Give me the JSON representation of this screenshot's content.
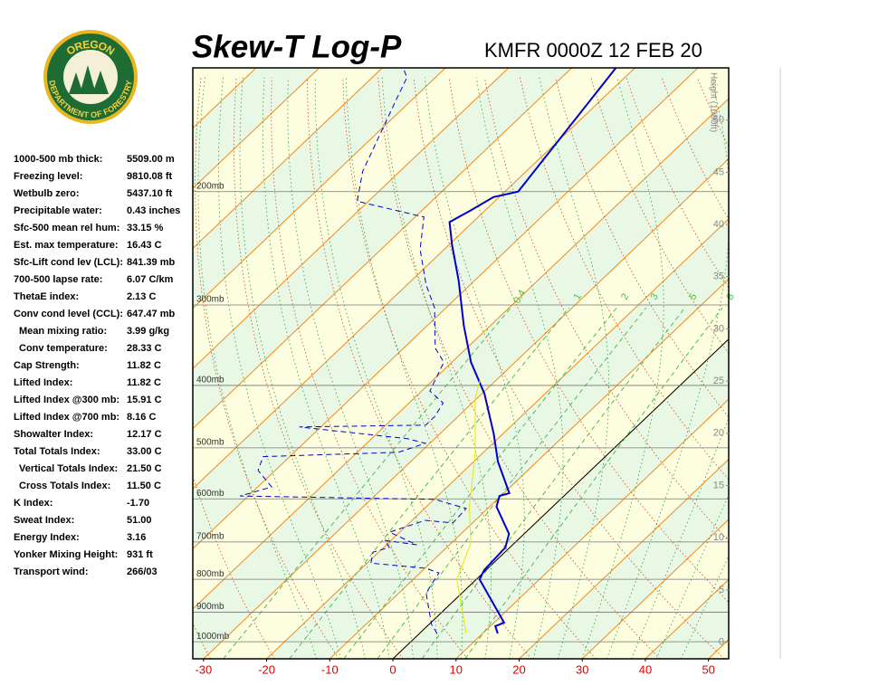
{
  "logo": {
    "top": "OREGON",
    "bottom": "DEPARTMENT OF FORESTRY"
  },
  "stats": [
    {
      "label": "1000-500 mb thick:",
      "value": "5509.00 m"
    },
    {
      "label": "Freezing level:",
      "value": "9810.08 ft"
    },
    {
      "label": "Wetbulb zero:",
      "value": "5437.10 ft"
    },
    {
      "label": "Precipitable water:",
      "value": "0.43 inches"
    },
    {
      "label": "Sfc-500 mean rel hum:",
      "value": "33.15 %"
    },
    {
      "label": "Est. max temperature:",
      "value": "16.43 C"
    },
    {
      "label": "Sfc-Lift cond lev (LCL):",
      "value": "841.39 mb"
    },
    {
      "label": "700-500 lapse rate:",
      "value": "6.07 C/km"
    },
    {
      "label": "ThetaE index:",
      "value": "2.13 C"
    },
    {
      "label": "Conv cond level (CCL):",
      "value": "647.47 mb"
    },
    {
      "label": "Mean mixing ratio:",
      "value": "3.99 g/kg"
    },
    {
      "label": "Conv temperature:",
      "value": "28.33 C"
    },
    {
      "label": "Cap Strength:",
      "value": "11.82 C"
    },
    {
      "label": "Lifted Index:",
      "value": "11.82 C"
    },
    {
      "label": "Lifted Index @300 mb:",
      "value": "15.91 C"
    },
    {
      "label": "Lifted Index @700 mb:",
      "value": "8.16 C"
    },
    {
      "label": "Showalter Index:",
      "value": "12.17 C"
    },
    {
      "label": "Total Totals Index:",
      "value": "33.00 C"
    },
    {
      "label": "Vertical Totals Index:",
      "value": "21.50 C"
    },
    {
      "label": "Cross Totals Index:",
      "value": "11.50 C"
    },
    {
      "label": "K Index:",
      "value": "-1.70"
    },
    {
      "label": "Sweat Index:",
      "value": "51.00"
    },
    {
      "label": "Energy Index:",
      "value": "3.16"
    },
    {
      "label": "Yonker Mixing Height:",
      "value": "931 ft"
    },
    {
      "label": "Transport wind:",
      "value": "266/03"
    }
  ],
  "chart_data": {
    "type": "skew-t",
    "title": "Skew-T Log-P",
    "subtitle": "KMFR 0000Z 12 FEB 20",
    "y2label": "Height (1000ft)",
    "log_y": true,
    "xlim": [
      -31.7,
      53.2
    ],
    "xticks": [
      -30,
      -20,
      -10,
      0,
      10,
      20,
      30,
      40,
      50
    ],
    "ylim": [
      1063,
      128.5
    ],
    "yticks": [
      {
        "value": 200,
        "label": "200mb"
      },
      {
        "value": 300,
        "label": "300mb"
      },
      {
        "value": 400,
        "label": "400mb"
      },
      {
        "value": 500,
        "label": "500mb"
      },
      {
        "value": 600,
        "label": "600mb"
      },
      {
        "value": 700,
        "label": "700mb"
      },
      {
        "value": 800,
        "label": "800mb"
      },
      {
        "value": 900,
        "label": "900mb"
      },
      {
        "value": 1000,
        "label": "1000mb"
      }
    ],
    "y2lim": [
      -1.6,
      55
    ],
    "y2ticks": [
      0,
      5,
      10,
      15,
      20,
      25,
      30,
      35,
      40,
      45,
      50
    ],
    "mixing_ratio_labels": [
      0.4,
      1,
      2,
      3,
      5,
      8
    ],
    "series": [
      {
        "color": "#0000cc",
        "line_style": "solid",
        "x": [
          12.4,
          10.8,
          11.6,
          0.5,
          -0.3,
          -0.7,
          -2.4,
          -8.9,
          -10.2,
          -9.1,
          -16.2,
          -21.4,
          -29.6,
          -37.0,
          -44.2,
          -52.5,
          -59.5,
          -63.7,
          -62.3,
          -60.9,
          -57.9,
          -63.0
        ],
        "values": [
          971,
          946,
          934,
          800,
          774,
          714,
          680,
          617,
          594,
          588,
          525,
          476,
          412,
          368,
          323,
          275,
          242,
          223,
          214,
          204,
          200,
          128.5
        ]
      },
      {
        "color": "#0000cc",
        "line_style": "dashed",
        "x": [
          2.8,
          0.4,
          -5.7,
          -7.0,
          -9.9,
          -19.4,
          -20.9,
          -19.1,
          -21.0,
          -15.2,
          -21.6,
          -17.9,
          -13.1,
          -13.4,
          -19.9,
          -51.3,
          -47.8,
          -52.7,
          -54.2,
          -33.5,
          -30.7,
          -34.3,
          -53.4,
          -33.7,
          -33.7,
          -34.6,
          -38.7,
          -41.3,
          -45.0,
          -51.8,
          -57.0,
          -63.8,
          -68.6,
          -81.8,
          -85.9,
          -92.5,
          -94.5,
          -96.7
        ],
        "values": [
          971,
          940,
          840,
          782,
          769,
          755,
          726,
          714,
          696,
          707,
          676,
          648,
          654,
          621,
          601,
          594,
          575,
          542,
          516,
          508,
          492,
          484,
          464,
          461,
          447,
          426,
          408,
          368,
          350,
          303,
          279,
          246,
          219,
          207,
          186,
          144,
          133,
          128.5
        ]
      },
      {
        "color": "#e8e800",
        "line_style": "solid",
        "x": [
          7.4,
          -3.1,
          -6.9,
          -13.2,
          -21.3,
          -30.3,
          -32.6
        ],
        "values": [
          971,
          800,
          703,
          617,
          508,
          419,
          392
        ]
      }
    ]
  }
}
